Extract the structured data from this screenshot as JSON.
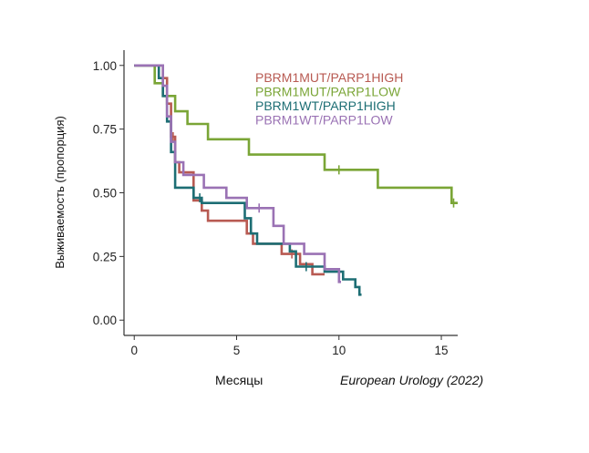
{
  "chart_data": {
    "type": "line",
    "subtype": "kaplan-meier step",
    "title": "",
    "xlabel": "Месяцы",
    "ylabel": "Выживаемость (пропорция)",
    "xlim": [
      -0.5,
      15.8
    ],
    "ylim": [
      -0.06,
      1.06
    ],
    "x_ticks": [
      0,
      5,
      10,
      15
    ],
    "y_ticks": [
      0.0,
      0.25,
      0.5,
      0.75,
      1.0
    ],
    "y_tick_labels": [
      "0.00",
      "0.25",
      "0.50",
      "0.75",
      "1.00"
    ],
    "grid": false,
    "legend_position": "top-right",
    "series": [
      {
        "name": "PBRM1MUT/PARP1HIGH",
        "color": "#b85a52",
        "points": [
          [
            0,
            1
          ],
          [
            1.4,
            1
          ],
          [
            1.4,
            0.95
          ],
          [
            1.6,
            0.95
          ],
          [
            1.6,
            0.85
          ],
          [
            1.8,
            0.85
          ],
          [
            1.8,
            0.72
          ],
          [
            2,
            0.72
          ],
          [
            2,
            0.62
          ],
          [
            2.2,
            0.62
          ],
          [
            2.2,
            0.58
          ],
          [
            2.9,
            0.58
          ],
          [
            2.9,
            0.47
          ],
          [
            3.3,
            0.47
          ],
          [
            3.3,
            0.43
          ],
          [
            3.6,
            0.43
          ],
          [
            3.6,
            0.39
          ],
          [
            5.5,
            0.39
          ],
          [
            5.5,
            0.34
          ],
          [
            5.8,
            0.34
          ],
          [
            5.8,
            0.3
          ],
          [
            7.2,
            0.3
          ],
          [
            7.2,
            0.26
          ],
          [
            8.1,
            0.26
          ],
          [
            8.1,
            0.22
          ],
          [
            8.7,
            0.22
          ],
          [
            8.7,
            0.18
          ],
          [
            9.3,
            0.18
          ]
        ],
        "censor": [
          [
            1.9,
            0.72
          ],
          [
            7.7,
            0.26
          ]
        ]
      },
      {
        "name": "PBRM1MUT/PARP1LOW",
        "color": "#7aa536",
        "points": [
          [
            0,
            1
          ],
          [
            1,
            1
          ],
          [
            1,
            0.93
          ],
          [
            1.4,
            0.93
          ],
          [
            1.4,
            0.88
          ],
          [
            2,
            0.88
          ],
          [
            2,
            0.82
          ],
          [
            2.6,
            0.82
          ],
          [
            2.6,
            0.77
          ],
          [
            3.6,
            0.77
          ],
          [
            3.6,
            0.71
          ],
          [
            5.6,
            0.71
          ],
          [
            5.6,
            0.65
          ],
          [
            9.3,
            0.65
          ],
          [
            9.3,
            0.59
          ],
          [
            11.9,
            0.59
          ],
          [
            11.9,
            0.52
          ],
          [
            15.5,
            0.52
          ],
          [
            15.5,
            0.46
          ],
          [
            15.8,
            0.46
          ]
        ],
        "censor": [
          [
            10,
            0.59
          ],
          [
            15.6,
            0.46
          ]
        ]
      },
      {
        "name": "PBRM1WT/PARP1HIGH",
        "color": "#1d6e74",
        "points": [
          [
            0,
            1
          ],
          [
            1.2,
            1
          ],
          [
            1.2,
            0.95
          ],
          [
            1.4,
            0.95
          ],
          [
            1.4,
            0.88
          ],
          [
            1.6,
            0.88
          ],
          [
            1.6,
            0.78
          ],
          [
            1.8,
            0.78
          ],
          [
            1.8,
            0.66
          ],
          [
            2,
            0.66
          ],
          [
            2,
            0.52
          ],
          [
            2.9,
            0.52
          ],
          [
            2.9,
            0.48
          ],
          [
            3.3,
            0.48
          ],
          [
            3.3,
            0.46
          ],
          [
            5.4,
            0.46
          ],
          [
            5.4,
            0.4
          ],
          [
            5.7,
            0.4
          ],
          [
            5.7,
            0.34
          ],
          [
            6,
            0.34
          ],
          [
            6,
            0.3
          ],
          [
            7.6,
            0.3
          ],
          [
            7.6,
            0.27
          ],
          [
            7.9,
            0.27
          ],
          [
            7.9,
            0.21
          ],
          [
            9.3,
            0.21
          ],
          [
            9.3,
            0.19
          ],
          [
            10.2,
            0.19
          ],
          [
            10.2,
            0.16
          ],
          [
            10.8,
            0.16
          ],
          [
            10.8,
            0.13
          ],
          [
            11,
            0.13
          ],
          [
            11,
            0.1
          ],
          [
            11.1,
            0.1
          ]
        ],
        "censor": [
          [
            3.2,
            0.48
          ],
          [
            8.4,
            0.21
          ]
        ]
      },
      {
        "name": "PBRM1WT/PARP1LOW",
        "color": "#9a72b4",
        "points": [
          [
            0,
            1
          ],
          [
            1.4,
            1
          ],
          [
            1.4,
            0.92
          ],
          [
            1.6,
            0.92
          ],
          [
            1.6,
            0.8
          ],
          [
            1.8,
            0.8
          ],
          [
            1.8,
            0.7
          ],
          [
            2,
            0.7
          ],
          [
            2,
            0.62
          ],
          [
            2.4,
            0.62
          ],
          [
            2.4,
            0.57
          ],
          [
            3.4,
            0.57
          ],
          [
            3.4,
            0.52
          ],
          [
            4.5,
            0.52
          ],
          [
            4.5,
            0.48
          ],
          [
            5.5,
            0.48
          ],
          [
            5.5,
            0.44
          ],
          [
            6.8,
            0.44
          ],
          [
            6.8,
            0.37
          ],
          [
            7.3,
            0.37
          ],
          [
            7.3,
            0.3
          ],
          [
            8.3,
            0.3
          ],
          [
            8.3,
            0.26
          ],
          [
            9.3,
            0.26
          ],
          [
            9.3,
            0.2
          ],
          [
            10,
            0.2
          ],
          [
            10,
            0.15
          ],
          [
            10.1,
            0.15
          ]
        ],
        "censor": [
          [
            6.1,
            0.44
          ]
        ]
      }
    ]
  },
  "source": "European Urology (2022)"
}
